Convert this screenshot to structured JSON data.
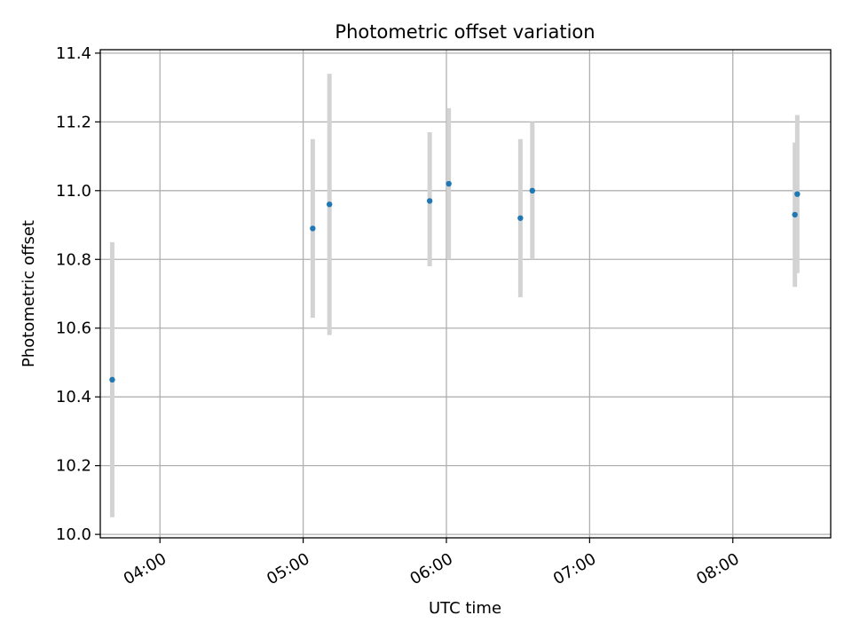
{
  "chart_data": {
    "type": "scatter",
    "title": "Photometric offset variation",
    "xlabel": "UTC time",
    "ylabel": "Photometric offset",
    "x_ticks": [
      "04:00",
      "05:00",
      "06:00",
      "07:00",
      "08:00"
    ],
    "y_ticks": [
      "10.0",
      "10.2",
      "10.4",
      "10.6",
      "10.8",
      "11.0",
      "11.2",
      "11.4"
    ],
    "xlim": [
      "03:35",
      "08:41"
    ],
    "ylim": [
      9.99,
      11.41
    ],
    "grid": true,
    "points": [
      {
        "x": "03:40",
        "y": 10.45,
        "err_low": 10.05,
        "err_high": 10.85
      },
      {
        "x": "05:04",
        "y": 10.89,
        "err_low": 10.63,
        "err_high": 11.15
      },
      {
        "x": "05:11",
        "y": 10.96,
        "err_low": 10.58,
        "err_high": 11.34
      },
      {
        "x": "05:53",
        "y": 10.97,
        "err_low": 10.78,
        "err_high": 11.17
      },
      {
        "x": "06:01",
        "y": 11.02,
        "err_low": 10.8,
        "err_high": 11.24
      },
      {
        "x": "06:31",
        "y": 10.92,
        "err_low": 10.69,
        "err_high": 11.15
      },
      {
        "x": "06:36",
        "y": 11.0,
        "err_low": 10.8,
        "err_high": 11.2
      },
      {
        "x": "08:26",
        "y": 10.93,
        "err_low": 10.72,
        "err_high": 11.14
      },
      {
        "x": "08:27",
        "y": 10.99,
        "err_low": 10.76,
        "err_high": 11.22
      }
    ],
    "colors": {
      "marker": "#1f77b4",
      "errorbar": "#d3d3d3",
      "grid": "#b0b0b0"
    }
  }
}
